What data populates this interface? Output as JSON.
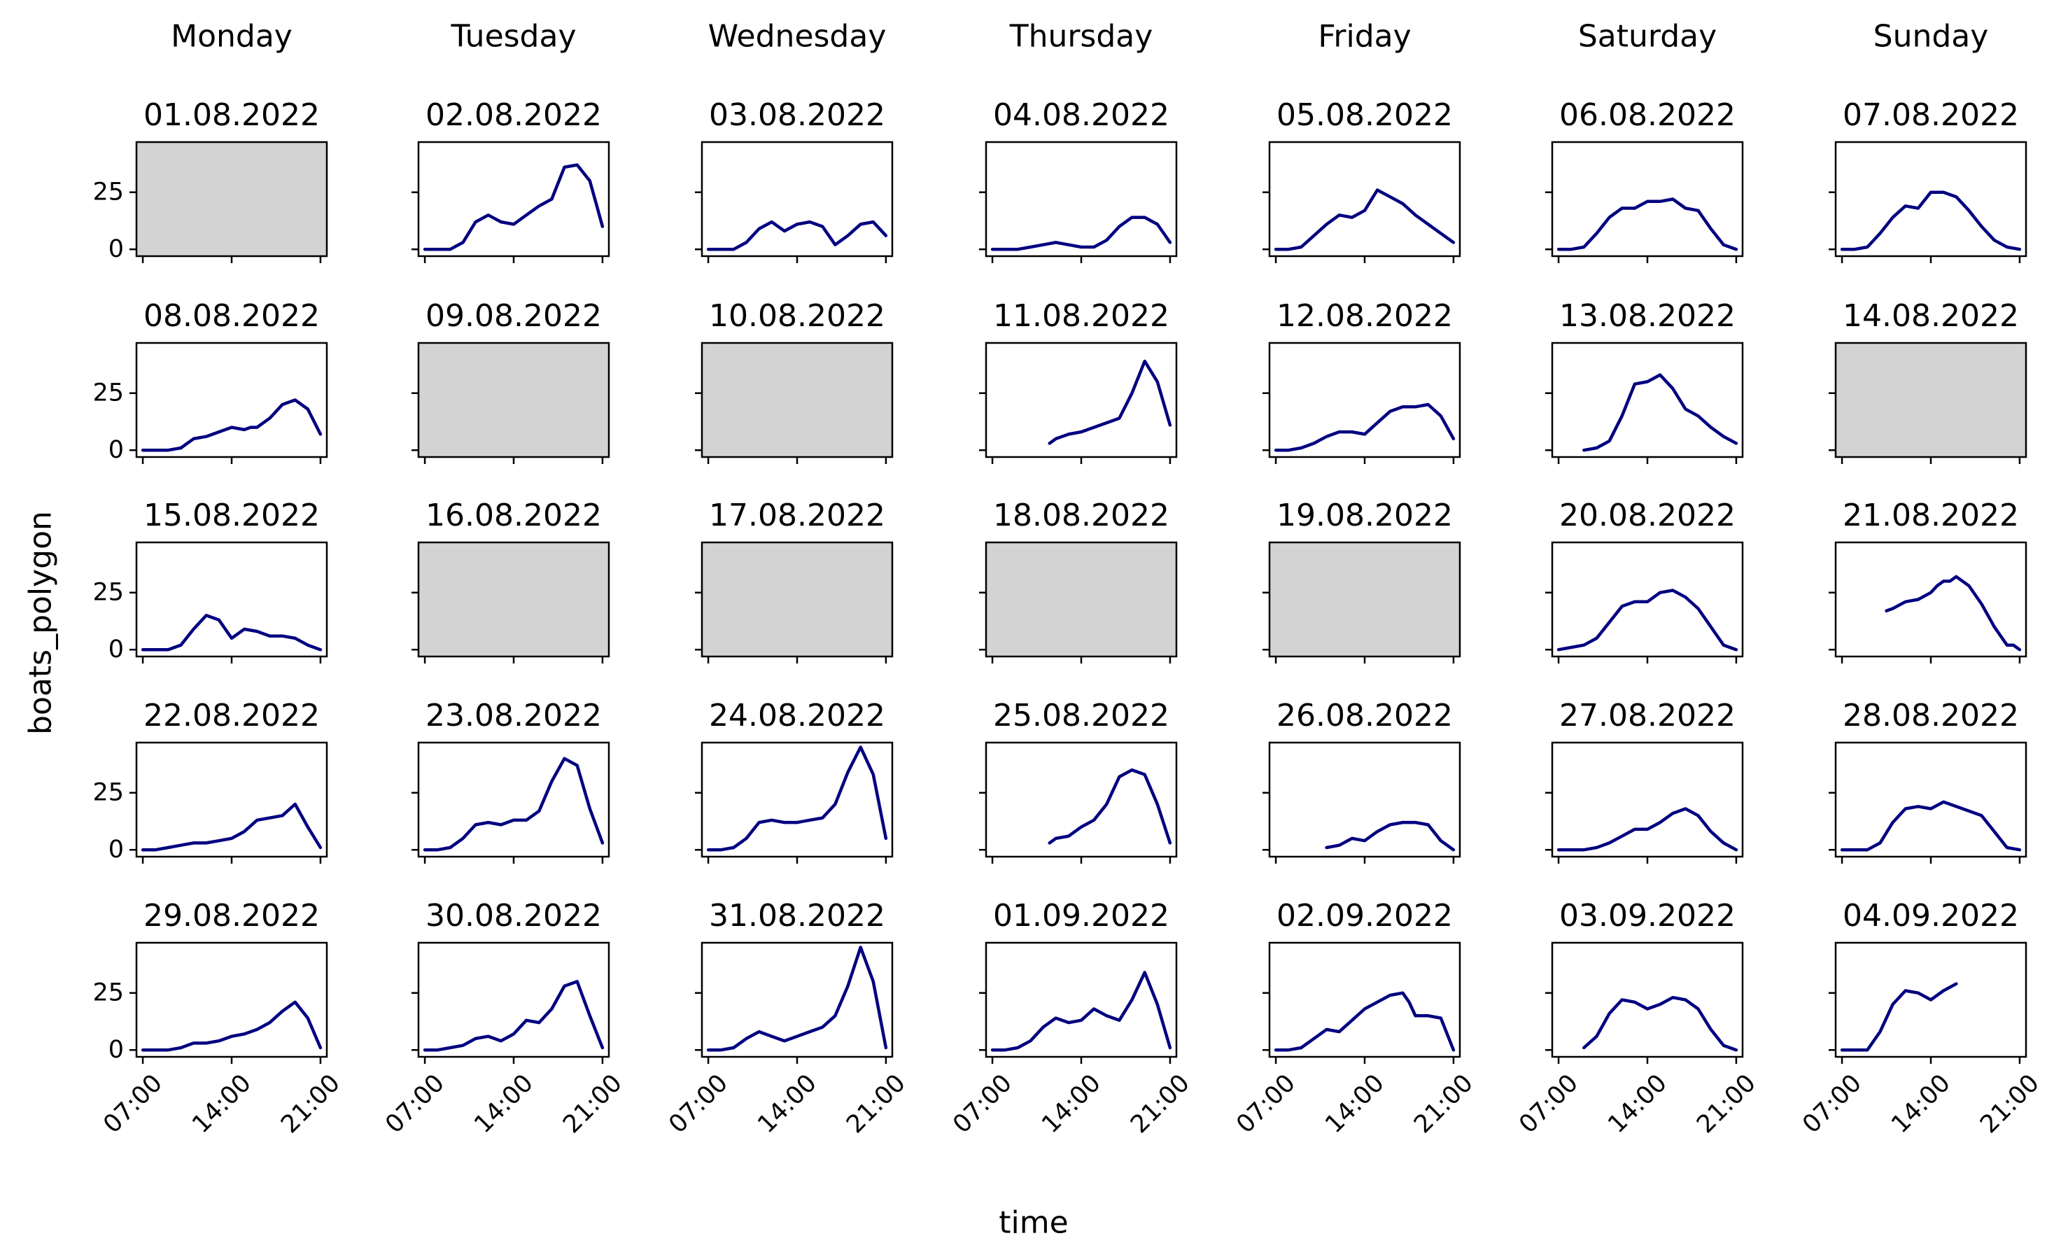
{
  "chart_data": {
    "type": "line",
    "title": "",
    "xlabel": "time",
    "ylabel": "boats_polygon",
    "x_ticks": [
      "07:00",
      "14:00",
      "21:00"
    ],
    "x_range_hours": [
      6.5,
      21.5
    ],
    "ylim": [
      -3,
      47
    ],
    "y_ticks": [
      0,
      25
    ],
    "weekdays": [
      "Monday",
      "Tuesday",
      "Wednesday",
      "Thursday",
      "Friday",
      "Saturday",
      "Sunday"
    ],
    "colors": {
      "line": "#000080",
      "empty_panel": "#d3d3d3",
      "axes": "#000000"
    },
    "panels": [
      {
        "date": "01.08.2022",
        "empty": true,
        "x": [],
        "y": []
      },
      {
        "date": "02.08.2022",
        "empty": false,
        "x": [
          7,
          8,
          9,
          10,
          11,
          12,
          13,
          14,
          15,
          16,
          17,
          18,
          19,
          20,
          20.5,
          21
        ],
        "y": [
          0,
          0,
          0,
          3,
          12,
          15,
          12,
          11,
          15,
          19,
          22,
          36,
          37,
          30,
          20,
          10
        ]
      },
      {
        "date": "03.08.2022",
        "empty": false,
        "x": [
          7,
          8,
          9,
          10,
          11,
          12,
          13,
          14,
          15,
          16,
          17,
          18,
          19,
          20,
          21
        ],
        "y": [
          0,
          0,
          0,
          3,
          9,
          12,
          8,
          11,
          12,
          10,
          2,
          6,
          11,
          12,
          6
        ]
      },
      {
        "date": "04.08.2022",
        "empty": false,
        "x": [
          7,
          8,
          9,
          10,
          11,
          12,
          13,
          14,
          15,
          16,
          17,
          18,
          19,
          20,
          21
        ],
        "y": [
          0,
          0,
          0,
          1,
          2,
          3,
          2,
          1,
          1,
          4,
          10,
          14,
          14,
          11,
          3
        ]
      },
      {
        "date": "05.08.2022",
        "empty": false,
        "x": [
          7,
          8,
          9,
          10,
          11,
          12,
          13,
          14,
          15,
          16,
          17,
          18,
          19,
          20,
          21
        ],
        "y": [
          0,
          0,
          1,
          6,
          11,
          15,
          14,
          17,
          26,
          23,
          20,
          15,
          11,
          7,
          3
        ]
      },
      {
        "date": "06.08.2022",
        "empty": false,
        "x": [
          7,
          8,
          9,
          10,
          11,
          12,
          13,
          14,
          15,
          16,
          17,
          18,
          19,
          20,
          21
        ],
        "y": [
          0,
          0,
          1,
          7,
          14,
          18,
          18,
          21,
          21,
          22,
          18,
          17,
          9,
          2,
          0
        ]
      },
      {
        "date": "07.08.2022",
        "empty": false,
        "x": [
          7,
          8,
          9,
          10,
          11,
          12,
          13,
          14,
          15,
          16,
          17,
          18,
          19,
          20,
          21
        ],
        "y": [
          0,
          0,
          1,
          7,
          14,
          19,
          18,
          25,
          25,
          23,
          17,
          10,
          4,
          1,
          0
        ]
      },
      {
        "date": "08.08.2022",
        "empty": false,
        "x": [
          7,
          8,
          9,
          10,
          11,
          12,
          13,
          14,
          15,
          15.5,
          16,
          16.5,
          17,
          17.5,
          18,
          19,
          20,
          21
        ],
        "y": [
          0,
          0,
          0,
          1,
          5,
          6,
          8,
          10,
          9,
          10,
          10,
          12,
          14,
          17,
          20,
          22,
          18,
          7
        ]
      },
      {
        "date": "09.08.2022",
        "empty": true,
        "x": [],
        "y": []
      },
      {
        "date": "10.08.2022",
        "empty": true,
        "x": [],
        "y": []
      },
      {
        "date": "11.08.2022",
        "empty": false,
        "x": [
          11.5,
          12,
          13,
          14,
          15,
          16,
          17,
          18,
          19,
          20,
          21
        ],
        "y": [
          3,
          5,
          7,
          8,
          10,
          12,
          14,
          25,
          39,
          30,
          11
        ]
      },
      {
        "date": "12.08.2022",
        "empty": false,
        "x": [
          7,
          8,
          9,
          10,
          11,
          12,
          13,
          14,
          15,
          16,
          17,
          18,
          19,
          20,
          21
        ],
        "y": [
          0,
          0,
          1,
          3,
          6,
          8,
          8,
          7,
          12,
          17,
          19,
          19,
          20,
          15,
          5
        ]
      },
      {
        "date": "13.08.2022",
        "empty": false,
        "x": [
          9,
          10,
          11,
          12,
          13,
          14,
          15,
          16,
          17,
          18,
          19,
          20,
          21
        ],
        "y": [
          0,
          1,
          4,
          15,
          29,
          30,
          33,
          27,
          18,
          15,
          10,
          6,
          3
        ]
      },
      {
        "date": "14.08.2022",
        "empty": true,
        "x": [],
        "y": []
      },
      {
        "date": "15.08.2022",
        "empty": false,
        "x": [
          7,
          8,
          9,
          10,
          11,
          12,
          13,
          14,
          15,
          16,
          17,
          18,
          19,
          20,
          21
        ],
        "y": [
          0,
          0,
          0,
          2,
          9,
          15,
          13,
          5,
          9,
          8,
          6,
          6,
          5,
          2,
          0
        ]
      },
      {
        "date": "16.08.2022",
        "empty": true,
        "x": [],
        "y": []
      },
      {
        "date": "17.08.2022",
        "empty": true,
        "x": [],
        "y": []
      },
      {
        "date": "18.08.2022",
        "empty": true,
        "x": [],
        "y": []
      },
      {
        "date": "19.08.2022",
        "empty": true,
        "x": [],
        "y": []
      },
      {
        "date": "20.08.2022",
        "empty": false,
        "x": [
          7,
          8,
          9,
          10,
          11,
          12,
          13,
          14,
          15,
          16,
          17,
          18,
          19,
          20,
          21
        ],
        "y": [
          0,
          1,
          2,
          5,
          12,
          19,
          21,
          21,
          25,
          26,
          23,
          18,
          10,
          2,
          0
        ]
      },
      {
        "date": "21.08.2022",
        "empty": false,
        "x": [
          10.5,
          11,
          12,
          13,
          14,
          14.5,
          15,
          15.5,
          16,
          17,
          18,
          19,
          20,
          20.5,
          21
        ],
        "y": [
          17,
          18,
          21,
          22,
          25,
          28,
          30,
          30,
          32,
          28,
          20,
          10,
          2,
          2,
          0
        ]
      },
      {
        "date": "22.08.2022",
        "empty": false,
        "x": [
          7,
          8,
          9,
          10,
          11,
          12,
          13,
          14,
          15,
          16,
          17,
          18,
          19,
          20,
          21
        ],
        "y": [
          0,
          0,
          1,
          2,
          3,
          3,
          4,
          5,
          8,
          13,
          14,
          15,
          20,
          10,
          1
        ]
      },
      {
        "date": "23.08.2022",
        "empty": false,
        "x": [
          7,
          8,
          9,
          10,
          11,
          12,
          13,
          14,
          15,
          16,
          17,
          18,
          19,
          20,
          21
        ],
        "y": [
          0,
          0,
          1,
          5,
          11,
          12,
          11,
          13,
          13,
          17,
          30,
          40,
          37,
          18,
          3
        ]
      },
      {
        "date": "24.08.2022",
        "empty": false,
        "x": [
          7,
          8,
          9,
          10,
          11,
          12,
          13,
          14,
          15,
          16,
          17,
          18,
          19,
          20,
          21
        ],
        "y": [
          0,
          0,
          1,
          5,
          12,
          13,
          12,
          12,
          13,
          14,
          20,
          34,
          45,
          33,
          5
        ]
      },
      {
        "date": "25.08.2022",
        "empty": false,
        "x": [
          11.5,
          12,
          13,
          14,
          15,
          16,
          17,
          18,
          19,
          20,
          21
        ],
        "y": [
          3,
          5,
          6,
          10,
          13,
          20,
          32,
          35,
          33,
          20,
          3
        ]
      },
      {
        "date": "26.08.2022",
        "empty": false,
        "x": [
          11,
          12,
          13,
          14,
          15,
          16,
          17,
          18,
          19,
          20,
          21
        ],
        "y": [
          1,
          2,
          5,
          4,
          8,
          11,
          12,
          12,
          11,
          4,
          0
        ]
      },
      {
        "date": "27.08.2022",
        "empty": false,
        "x": [
          7,
          8,
          9,
          10,
          11,
          12,
          13,
          14,
          15,
          16,
          17,
          18,
          19,
          20,
          21
        ],
        "y": [
          0,
          0,
          0,
          1,
          3,
          6,
          9,
          9,
          12,
          16,
          18,
          15,
          8,
          3,
          0
        ]
      },
      {
        "date": "28.08.2022",
        "empty": false,
        "x": [
          7,
          8,
          9,
          10,
          11,
          12,
          13,
          14,
          15,
          16,
          17,
          18,
          19,
          20,
          21
        ],
        "y": [
          0,
          0,
          0,
          3,
          12,
          18,
          19,
          18,
          21,
          19,
          17,
          15,
          8,
          1,
          0
        ]
      },
      {
        "date": "29.08.2022",
        "empty": false,
        "x": [
          7,
          8,
          9,
          10,
          11,
          12,
          13,
          14,
          15,
          16,
          17,
          18,
          19,
          20,
          21
        ],
        "y": [
          0,
          0,
          0,
          1,
          3,
          3,
          4,
          6,
          7,
          9,
          12,
          17,
          21,
          14,
          1
        ]
      },
      {
        "date": "30.08.2022",
        "empty": false,
        "x": [
          7,
          8,
          9,
          10,
          11,
          12,
          13,
          14,
          15,
          16,
          17,
          18,
          19,
          20,
          21
        ],
        "y": [
          0,
          0,
          1,
          2,
          5,
          6,
          4,
          7,
          13,
          12,
          18,
          28,
          30,
          15,
          1
        ]
      },
      {
        "date": "31.08.2022",
        "empty": false,
        "x": [
          7,
          8,
          9,
          10,
          11,
          12,
          13,
          14,
          15,
          16,
          17,
          18,
          19,
          20,
          21
        ],
        "y": [
          0,
          0,
          1,
          5,
          8,
          6,
          4,
          6,
          8,
          10,
          15,
          28,
          45,
          30,
          1
        ]
      },
      {
        "date": "01.09.2022",
        "empty": false,
        "x": [
          7,
          8,
          9,
          10,
          11,
          12,
          13,
          14,
          15,
          16,
          17,
          18,
          19,
          20,
          21
        ],
        "y": [
          0,
          0,
          1,
          4,
          10,
          14,
          12,
          13,
          18,
          15,
          13,
          22,
          34,
          20,
          1
        ]
      },
      {
        "date": "02.09.2022",
        "empty": false,
        "x": [
          7,
          8,
          9,
          10,
          11,
          12,
          13,
          14,
          15,
          16,
          17,
          17.5,
          18,
          19,
          20,
          21
        ],
        "y": [
          0,
          0,
          1,
          5,
          9,
          8,
          13,
          18,
          21,
          24,
          25,
          21,
          15,
          15,
          14,
          0
        ]
      },
      {
        "date": "03.09.2022",
        "empty": false,
        "x": [
          9,
          10,
          11,
          12,
          13,
          14,
          15,
          16,
          17,
          18,
          19,
          20,
          21
        ],
        "y": [
          1,
          6,
          16,
          22,
          21,
          18,
          20,
          23,
          22,
          18,
          9,
          2,
          0
        ]
      },
      {
        "date": "04.09.2022",
        "empty": false,
        "x": [
          7,
          8,
          9,
          10,
          11,
          12,
          13,
          14,
          15,
          16
        ],
        "y": [
          0,
          0,
          0,
          8,
          20,
          26,
          25,
          22,
          26,
          29
        ]
      }
    ]
  }
}
